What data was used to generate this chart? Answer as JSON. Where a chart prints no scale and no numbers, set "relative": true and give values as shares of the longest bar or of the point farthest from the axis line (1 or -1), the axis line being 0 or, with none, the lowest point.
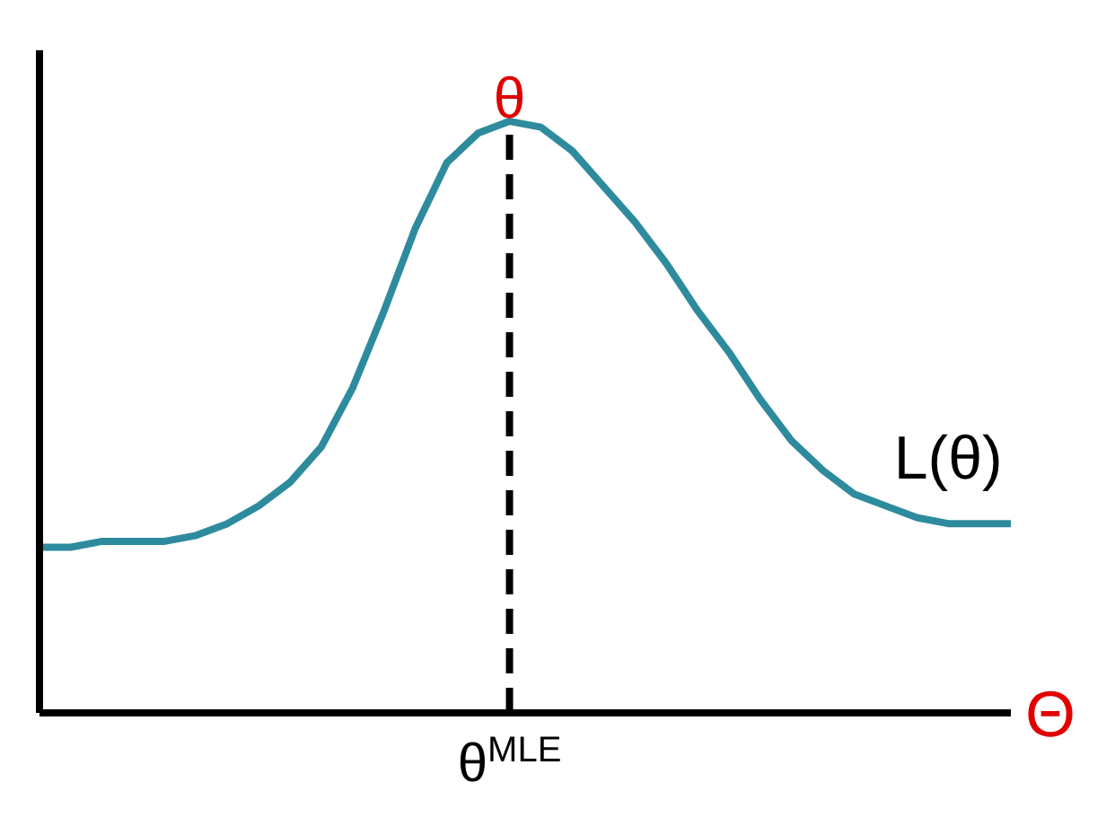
{
  "chart_data": {
    "type": "line",
    "relative": true,
    "xlabel": "Θ",
    "legend": false,
    "grid": false,
    "marker": "none",
    "categories": [
      null,
      null,
      null,
      null,
      null,
      null,
      null,
      null,
      null,
      null,
      null,
      null,
      null,
      null,
      null,
      null,
      null,
      null,
      null,
      null,
      null,
      null,
      null,
      null,
      null,
      null,
      null,
      null,
      null,
      null,
      null,
      null
    ],
    "series": [
      {
        "name": "L(θ)",
        "color": "#2e8b9e",
        "values": [
          0.28,
          0.28,
          0.29,
          0.29,
          0.29,
          0.3,
          0.32,
          0.35,
          0.39,
          0.45,
          0.55,
          0.68,
          0.82,
          0.93,
          0.98,
          1,
          0.99,
          0.95,
          0.89,
          0.83,
          0.76,
          0.68,
          0.61,
          0.53,
          0.46,
          0.41,
          0.37,
          0.35,
          0.33,
          0.32,
          0.32,
          0.32
        ]
      }
    ],
    "annotations": [
      "θ$^{MLE}$",
      "θ"
    ]
  }
}
